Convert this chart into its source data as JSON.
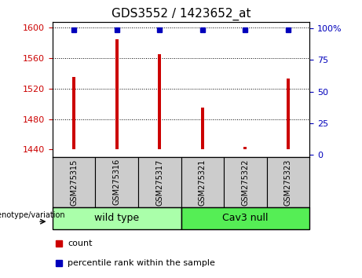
{
  "title": "GDS3552 / 1423652_at",
  "samples": [
    "GSM275315",
    "GSM275316",
    "GSM275317",
    "GSM275321",
    "GSM275322",
    "GSM275323"
  ],
  "counts": [
    1535,
    1585,
    1565,
    1495,
    1443,
    1533
  ],
  "percentile_ranks": [
    99,
    99,
    99,
    99,
    99,
    99
  ],
  "ylim_left": [
    1430,
    1607
  ],
  "ylim_right": [
    -2,
    105
  ],
  "yticks_left": [
    1440,
    1480,
    1520,
    1560,
    1600
  ],
  "yticks_right": [
    0,
    25,
    50,
    75,
    100
  ],
  "ytick_right_labels": [
    "0",
    "25",
    "50",
    "75",
    "100%"
  ],
  "bar_color": "#cc0000",
  "marker_color": "#0000bb",
  "bar_bottom": 1440,
  "grid_ticks": [
    1480,
    1520,
    1560,
    1600
  ],
  "groups": [
    {
      "label": "wild type",
      "indices": [
        0,
        1,
        2
      ],
      "color": "#aaffaa"
    },
    {
      "label": "Cav3 null",
      "indices": [
        3,
        4,
        5
      ],
      "color": "#55ee55"
    }
  ],
  "group_header": "genotype/variation",
  "legend_count_label": "count",
  "legend_pct_label": "percentile rank within the sample",
  "background_plot": "#ffffff",
  "background_label": "#cccccc",
  "tick_label_color_left": "#cc0000",
  "tick_label_color_right": "#0000bb",
  "title_fontsize": 11,
  "tick_fontsize": 8,
  "group_label_fontsize": 9,
  "bar_width": 0.07
}
